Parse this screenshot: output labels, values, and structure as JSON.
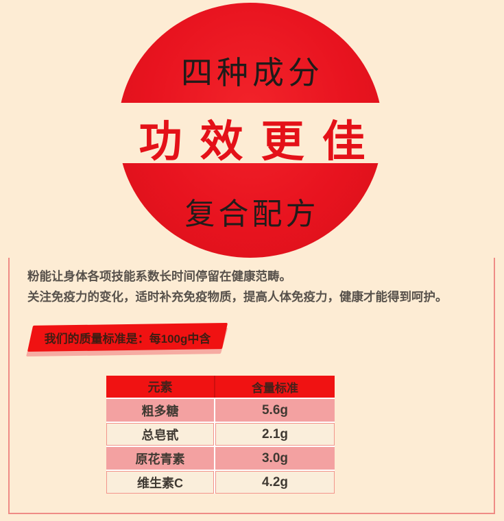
{
  "colors": {
    "page_bg": "#fdecd4",
    "circle_red": "#e8131f",
    "headline_red": "#e41118",
    "accent_red": "#f01212",
    "pink_row": "#f3a1a1",
    "cream_row": "#faeedb",
    "border_pink": "#ef8b85",
    "ribbon_shadow_pink": "#f6aba2"
  },
  "hero": {
    "top_label": "四种成分",
    "main_label": "功效更佳",
    "bottom_label": "复合配方"
  },
  "intro": {
    "line1": "粉能让身体各项技能系数长时间停留在健康范畴。",
    "line2": "关注免疫力的变化，适时补充免疫物质，提高人体免疫力，健康才能得到呵护。"
  },
  "ribbon": {
    "label": "我们的质量标准是：每100g中含"
  },
  "quality_table": {
    "headers": [
      "元素",
      "含量标准"
    ],
    "rows": [
      {
        "element": "粗多糖",
        "value": "5.6g"
      },
      {
        "element": "总皂甙",
        "value": "2.1g"
      },
      {
        "element": "原花青素",
        "value": "3.0g"
      },
      {
        "element": "维生素C",
        "value": "4.2g"
      }
    ]
  }
}
